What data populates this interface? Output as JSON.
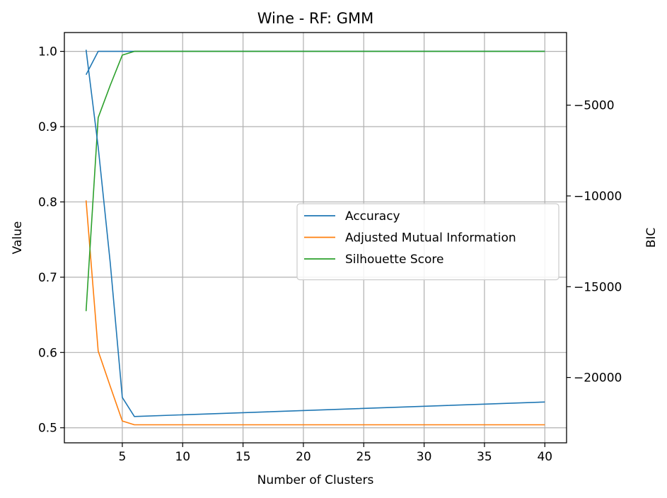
{
  "chart_data": {
    "type": "line",
    "title": "Wine - RF: GMM",
    "xlabel": "Number of Clusters",
    "ylabel": "Value",
    "y2label": "BIC",
    "xlim": [
      0.2,
      41.8
    ],
    "ylim": [
      0.48,
      1.025
    ],
    "y2lim": [
      -23600,
      -1000
    ],
    "grid": true,
    "legend_position": "center-right",
    "x_ticks": [
      5,
      10,
      15,
      20,
      25,
      30,
      35,
      40
    ],
    "x_tick_labels": [
      "5",
      "10",
      "15",
      "20",
      "25",
      "30",
      "35",
      "40"
    ],
    "y_ticks": [
      0.5,
      0.6,
      0.7,
      0.8,
      0.9,
      1.0
    ],
    "y_tick_labels": [
      "0.5",
      "0.6",
      "0.7",
      "0.8",
      "0.9",
      "1.0"
    ],
    "y2_ticks": [
      -20000,
      -15000,
      -10000,
      -5000
    ],
    "y2_tick_labels": [
      "−20000",
      "−15000",
      "−10000",
      "−5000"
    ],
    "series": [
      {
        "name": "Accuracy",
        "axis": "left",
        "color": "#1f77b4",
        "x": [
          2,
          3,
          4,
          5,
          6,
          40
        ],
        "y": [
          0.969,
          1.0,
          1.0,
          1.0,
          1.0,
          1.0
        ]
      },
      {
        "name": "Adjusted Mutual Information",
        "axis": "left",
        "color": "#ff7f0e",
        "x": [
          2,
          3,
          4,
          5,
          6,
          40
        ],
        "y": [
          0.802,
          0.602,
          0.555,
          0.509,
          0.504,
          0.504
        ]
      },
      {
        "name": "Silhouette Score",
        "axis": "left",
        "color": "#2ca02c",
        "x": [
          2,
          3,
          4,
          5,
          6,
          40
        ],
        "y": [
          0.655,
          0.912,
          0.955,
          0.995,
          1.0,
          1.0
        ]
      },
      {
        "name": "",
        "axis": "right",
        "color": "#1f77b4",
        "x": [
          2,
          3,
          4,
          5,
          6,
          40
        ],
        "y": [
          -1950,
          -7300,
          -13700,
          -21100,
          -22150,
          -21350
        ]
      }
    ]
  }
}
